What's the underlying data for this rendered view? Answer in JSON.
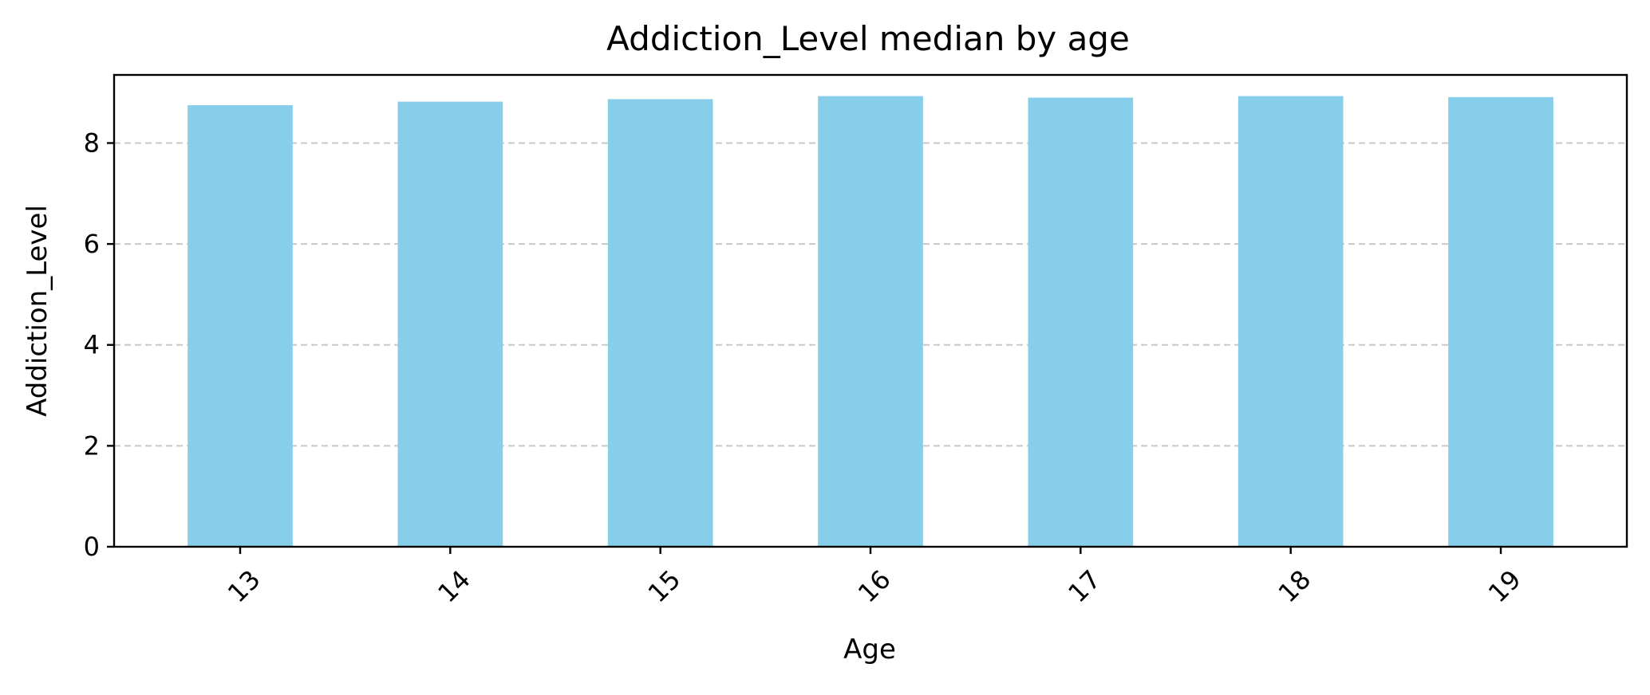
{
  "chart_data": {
    "type": "bar",
    "title": "Addiction_Level median by age",
    "xlabel": "Age",
    "ylabel": "Addiction_Level",
    "categories": [
      "13",
      "14",
      "15",
      "16",
      "17",
      "18",
      "19"
    ],
    "values": [
      8.75,
      8.82,
      8.87,
      8.93,
      8.9,
      8.93,
      8.91
    ],
    "ylim": [
      0,
      9.35
    ],
    "yticks": [
      0,
      2,
      4,
      6,
      8
    ],
    "grid": "y",
    "x_tick_rotation": 45,
    "bar_color": "#87CEEB",
    "grid_color": "#c8c8c8",
    "axis_color": "#000000"
  }
}
